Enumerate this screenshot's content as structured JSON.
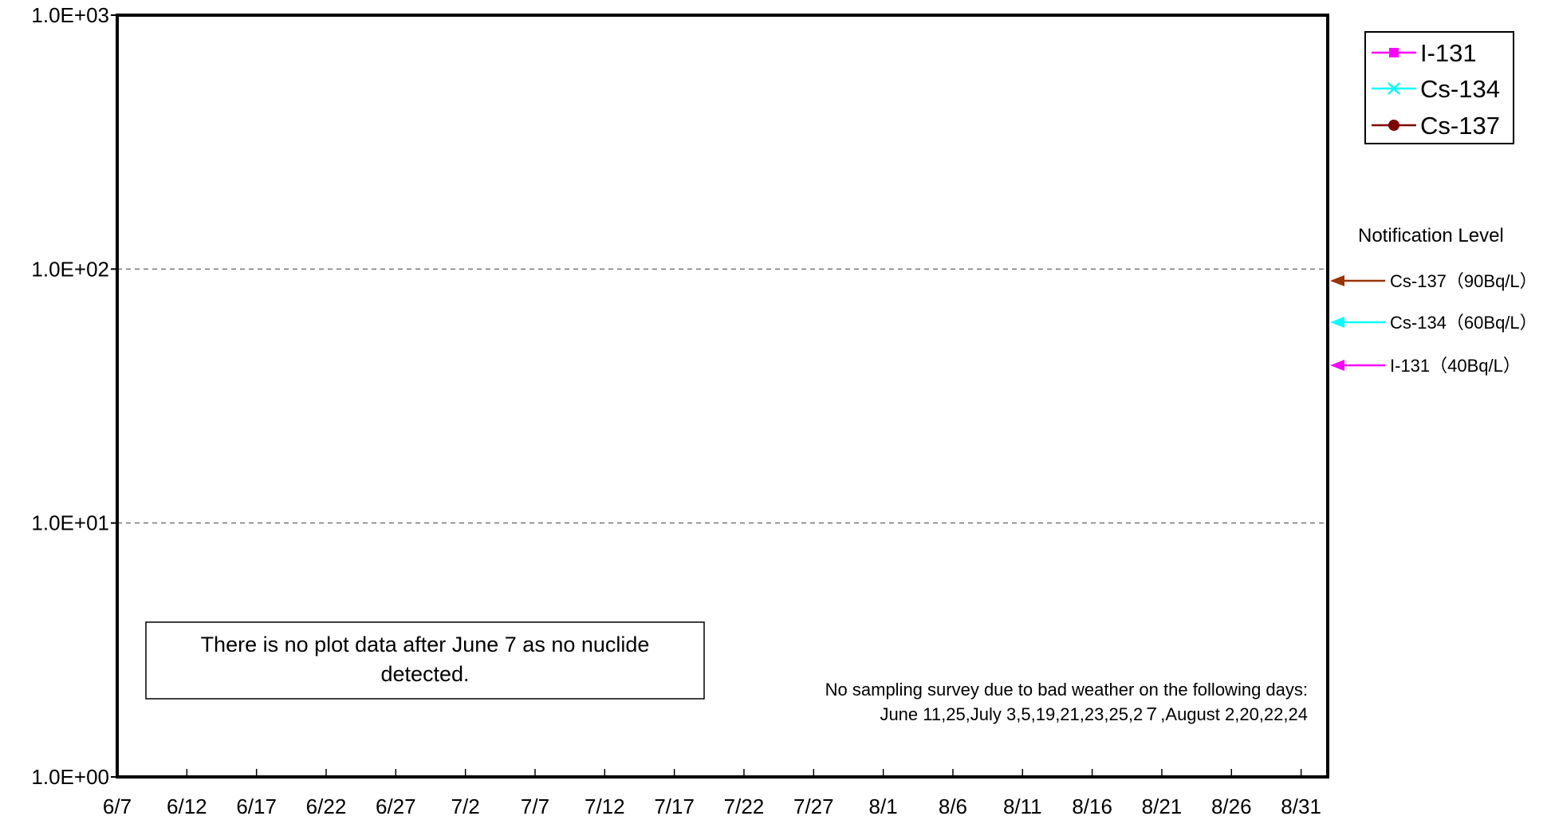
{
  "chart_data": {
    "type": "line",
    "yscale": "log",
    "ylim": [
      1,
      1000
    ],
    "y_ticks": [
      "1.0E+00",
      "1.0E+01",
      "1.0E+02",
      "1.0E+03"
    ],
    "xlim": [
      "6/7",
      "9/2"
    ],
    "x_ticks": [
      "6/7",
      "6/12",
      "6/17",
      "6/22",
      "6/27",
      "7/2",
      "7/7",
      "7/12",
      "7/17",
      "7/22",
      "7/27",
      "8/1",
      "8/6",
      "8/11",
      "8/16",
      "8/21",
      "8/26",
      "8/31"
    ],
    "grid": "horizontal dashed at decades",
    "legend_position": "top-right",
    "series": [
      {
        "name": "I-131",
        "color": "#ff00ff",
        "marker": "square",
        "values": []
      },
      {
        "name": "Cs-134",
        "color": "#00ffff",
        "marker": "x",
        "values": []
      },
      {
        "name": "Cs-137",
        "color": "#800000",
        "marker": "circle",
        "values": []
      }
    ],
    "notification": {
      "title": "Notification Level",
      "levels": [
        {
          "label": "Cs-137（90Bq/L）",
          "value": 90,
          "color": "#993300"
        },
        {
          "label": "Cs-134（60Bq/L）",
          "value": 60,
          "color": "#00ffff"
        },
        {
          "label": "I-131（40Bq/L）",
          "value": 40,
          "color": "#ff00ff"
        }
      ]
    },
    "annotation_box": {
      "lines": [
        "There is no plot data after June 7 as no nuclide",
        "detected."
      ]
    },
    "note": {
      "lines": [
        "No sampling survey due to bad weather on the following days:",
        "June 11,25,July 3,5,19,21,23,25,2７,August 2,20,22,24"
      ]
    }
  }
}
